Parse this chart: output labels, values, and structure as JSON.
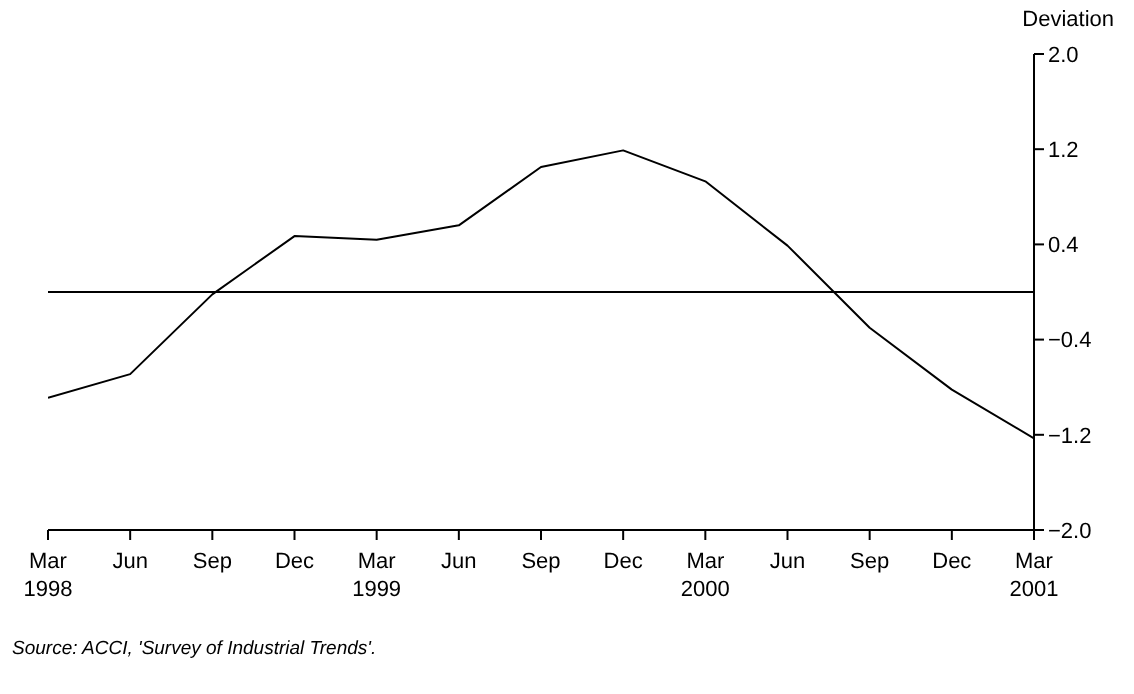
{
  "chart_data": {
    "type": "line",
    "ylabel": "Deviation",
    "categories": [
      "Mar\n1998",
      "Jun",
      "Sep",
      "Dec",
      "Mar\n1999",
      "Jun",
      "Sep",
      "Dec",
      "Mar\n2000",
      "Jun",
      "Sep",
      "Dec",
      "Mar\n2001"
    ],
    "series": [
      {
        "color": "#000000",
        "values": [
          -0.89,
          -0.69,
          -0.02,
          0.47,
          0.44,
          0.56,
          1.05,
          1.19,
          0.93,
          0.39,
          -0.3,
          -0.82,
          -1.23
        ]
      }
    ],
    "ylim": [
      -2.0,
      2.0
    ],
    "yticks": [
      {
        "value": -2.0,
        "label": "−2.0"
      },
      {
        "value": -1.2,
        "label": "−1.2"
      },
      {
        "value": -0.4,
        "label": "−0.4"
      },
      {
        "value": 0.4,
        "label": "0.4"
      },
      {
        "value": 1.2,
        "label": "1.2"
      },
      {
        "value": 2.0,
        "label": "2.0"
      }
    ],
    "ref_lines": [
      {
        "axis": "y",
        "value": 0,
        "color": "#000000"
      }
    ],
    "grid": false,
    "legend": false,
    "marker": "none",
    "line_style": "solid",
    "annotations": [
      "Source: ACCI, 'Survey of Industrial Trends'."
    ]
  }
}
